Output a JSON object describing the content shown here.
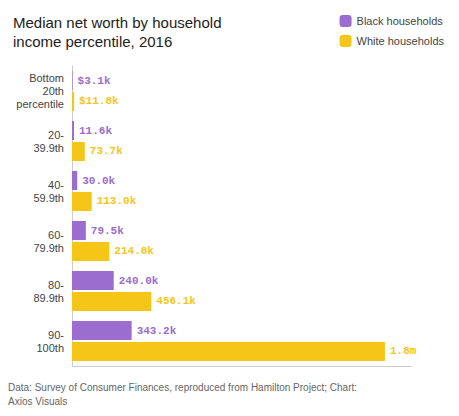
{
  "chart_data": {
    "type": "bar",
    "orientation": "horizontal",
    "title": "Median net worth by household\nincome percentile, 2016",
    "categories": [
      "Bottom\n20th\npercentile",
      "20-\n39.9th",
      "40-\n59.9th",
      "60-\n79.9th",
      "80-\n89.9th",
      "90-\n100th"
    ],
    "series": [
      {
        "name": "Black households",
        "color": "#9b6dce",
        "values": [
          3.1,
          11.6,
          30.0,
          79.5,
          240.0,
          343.2
        ],
        "value_labels": [
          "$3.1k",
          "11.6k",
          "30.0k",
          "79.5k",
          "240.0k",
          "343.2k"
        ]
      },
      {
        "name": "White households",
        "color": "#f5c518",
        "values": [
          11.8,
          73.7,
          113.0,
          214.8,
          456.1,
          1800.0
        ],
        "value_labels": [
          "$11.8k",
          "73.7k",
          "113.0k",
          "214.8k",
          "456.1k",
          "1.8m"
        ]
      }
    ],
    "xlim": [
      0,
      1950
    ],
    "data_labels": true,
    "tick_labels": "y",
    "grid": false,
    "legend": "upper right",
    "annotations": [
      "Data: Survey of Consumer Finances, reproduced from Hamilton Project; Chart:\nAxios Visuals"
    ]
  }
}
